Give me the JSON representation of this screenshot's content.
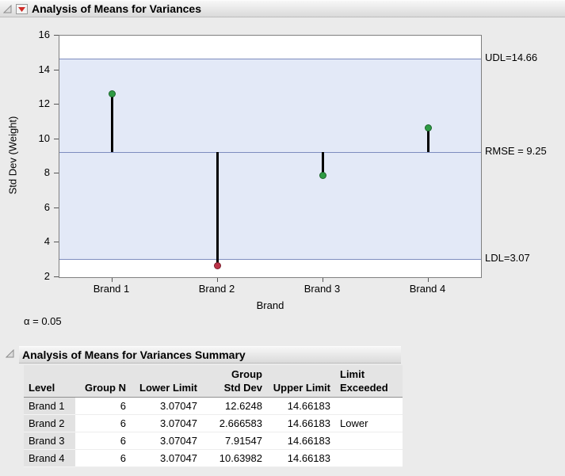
{
  "page": {
    "background": "#ebebeb"
  },
  "outlines": {
    "anom": {
      "title": "Analysis of Means for Variances"
    },
    "summary": {
      "title": "Analysis of Means for Variances Summary"
    }
  },
  "chart": {
    "y_label": "Std Dev (Weight)",
    "x_label": "Brand",
    "alpha_note": "α = 0.05",
    "annotations": {
      "udl": "UDL=14.66",
      "center": "RMSE = 9.25",
      "ldl": "LDL=3.07"
    }
  },
  "chart_data": {
    "type": "anom-variances-needle",
    "title": "Analysis of Means for Variances",
    "xlabel": "Brand",
    "ylabel": "Std Dev (Weight)",
    "categories": [
      "Brand 1",
      "Brand 2",
      "Brand 3",
      "Brand 4"
    ],
    "values": [
      12.6248,
      2.666583,
      7.91547,
      10.63982
    ],
    "center": 9.25,
    "udl": 14.66183,
    "ldl": 3.07047,
    "alpha": 0.05,
    "ylim": [
      2,
      16
    ],
    "y_ticks": [
      2,
      4,
      6,
      8,
      10,
      12,
      14,
      16
    ],
    "exceeded": [
      null,
      "Lower",
      null,
      null
    ],
    "colors": {
      "within": "#2e9b44",
      "exceeded": "#bd3449",
      "band": "#e3e9f7",
      "limit_line": "#7d8cbf",
      "needle": "#000000"
    }
  },
  "table": {
    "col_headers": [
      [
        "",
        "Level"
      ],
      [
        "",
        "Group N"
      ],
      [
        "",
        "Lower Limit"
      ],
      [
        "Group",
        "Std Dev"
      ],
      [
        "",
        "Upper Limit"
      ],
      [
        "Limit",
        "Exceeded"
      ]
    ],
    "align": [
      "left",
      "right",
      "right",
      "right",
      "right",
      "left"
    ],
    "rows": [
      [
        "Brand 1",
        "6",
        "3.07047",
        "12.6248",
        "14.66183",
        ""
      ],
      [
        "Brand 2",
        "6",
        "3.07047",
        "2.666583",
        "14.66183",
        "Lower"
      ],
      [
        "Brand 3",
        "6",
        "3.07047",
        "7.91547",
        "14.66183",
        ""
      ],
      [
        "Brand 4",
        "6",
        "3.07047",
        "10.63982",
        "14.66183",
        ""
      ]
    ]
  }
}
